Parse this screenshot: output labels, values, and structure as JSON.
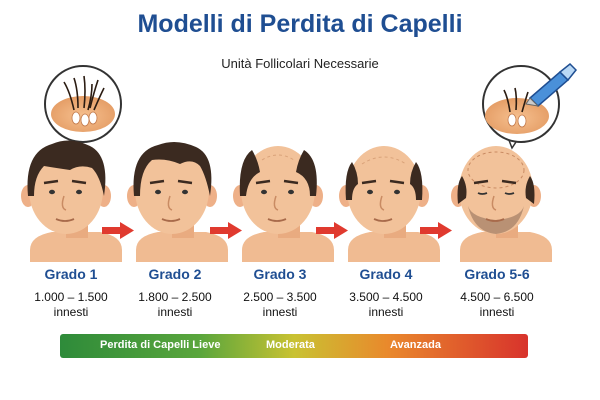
{
  "title": "Modelli di Perdita di Capelli",
  "subtitle": "Unità Follicolari Necessarie",
  "grades": [
    {
      "label": "Grado 1",
      "range": "1.000 – 1.500",
      "unit": "innesti"
    },
    {
      "label": "Grado 2",
      "range": "1.800 – 2.500",
      "unit": "innesti"
    },
    {
      "label": "Grado 3",
      "range": "2.500 – 3.500",
      "unit": "innesti"
    },
    {
      "label": "Grado 4",
      "range": "3.500 – 4.500",
      "unit": "innesti"
    },
    {
      "label": "Grado 5-6",
      "range": "4.500 – 6.500",
      "unit": "innesti"
    }
  ],
  "severity_bar": {
    "mild": "Perdita di Capelli Lieve",
    "moderate": "Moderata",
    "advanced": "Avanzada"
  },
  "colors": {
    "title": "#1f4e92",
    "arrow": "#e03a2f",
    "skin": "#f2c29a",
    "hair": "#3b2a20",
    "bar_start": "#2e8b3a",
    "bar_mid": "#c9c232",
    "bar_end": "#d8332c"
  }
}
